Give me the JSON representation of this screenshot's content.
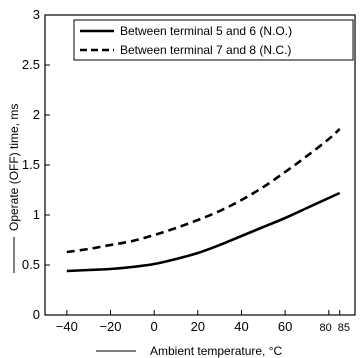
{
  "chart_data": {
    "type": "line",
    "xlabel": "Ambient temperature, °C",
    "ylabel": "Operate (OFF) time, ms",
    "xlim": [
      -50,
      92
    ],
    "ylim": [
      0,
      3
    ],
    "xticks": [
      -40,
      -20,
      0,
      20,
      40,
      60,
      80,
      85
    ],
    "xtick_labels": [
      "−40",
      "−20",
      "0",
      "20",
      "40",
      "60",
      "80",
      "85"
    ],
    "yticks": [
      0,
      0.5,
      1,
      1.5,
      2,
      2.5,
      3
    ],
    "ytick_labels": [
      "0",
      "0.5",
      "1",
      "1.5",
      "2",
      "2.5",
      "3"
    ],
    "grid": false,
    "legend_position": "top-right",
    "series": [
      {
        "name": "Between terminal 5 and 6 (N.O.)",
        "style": "solid",
        "x": [
          -40,
          -30,
          -20,
          -10,
          0,
          10,
          20,
          30,
          40,
          50,
          60,
          70,
          80,
          85
        ],
        "y": [
          0.44,
          0.45,
          0.46,
          0.48,
          0.51,
          0.56,
          0.62,
          0.7,
          0.79,
          0.88,
          0.97,
          1.07,
          1.17,
          1.22
        ]
      },
      {
        "name": "Between terminal 7 and 8 (N.C.)",
        "style": "dashed",
        "x": [
          -40,
          -30,
          -20,
          -10,
          0,
          10,
          20,
          30,
          40,
          50,
          60,
          70,
          80,
          85
        ],
        "y": [
          0.63,
          0.66,
          0.7,
          0.74,
          0.8,
          0.87,
          0.95,
          1.04,
          1.15,
          1.28,
          1.43,
          1.59,
          1.76,
          1.86
        ]
      }
    ]
  }
}
